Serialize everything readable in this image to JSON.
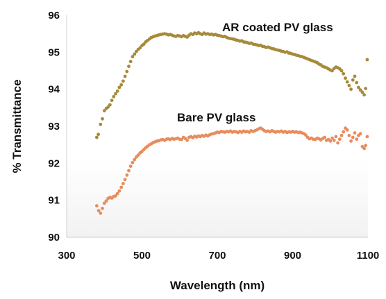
{
  "chart_data": {
    "type": "scatter",
    "title": "",
    "xlabel": "Wavelength (nm)",
    "ylabel": "% Transmittance",
    "xlim": [
      300,
      1100
    ],
    "ylim": [
      90,
      96
    ],
    "x_ticks": [
      300,
      500,
      700,
      900,
      1100
    ],
    "y_ticks": [
      90,
      91,
      92,
      93,
      94,
      95,
      96
    ],
    "grid": false,
    "legend": "none",
    "annotations": [
      {
        "text": "AR coated PV glass",
        "series": "AR coated PV glass"
      },
      {
        "text": "Bare PV glass",
        "series": "Bare PV glass"
      }
    ],
    "series": [
      {
        "name": "AR coated PV glass",
        "color": "#a68a3a",
        "points": [
          [
            380,
            92.7
          ],
          [
            384,
            92.78
          ],
          [
            390,
            93.05
          ],
          [
            395,
            93.2
          ],
          [
            400,
            93.42
          ],
          [
            405,
            93.48
          ],
          [
            410,
            93.52
          ],
          [
            415,
            93.58
          ],
          [
            420,
            93.7
          ],
          [
            425,
            93.8
          ],
          [
            430,
            93.88
          ],
          [
            435,
            93.95
          ],
          [
            440,
            94.05
          ],
          [
            445,
            94.12
          ],
          [
            450,
            94.22
          ],
          [
            455,
            94.35
          ],
          [
            460,
            94.48
          ],
          [
            465,
            94.62
          ],
          [
            470,
            94.75
          ],
          [
            475,
            94.88
          ],
          [
            480,
            94.95
          ],
          [
            485,
            95.02
          ],
          [
            490,
            95.08
          ],
          [
            495,
            95.12
          ],
          [
            500,
            95.18
          ],
          [
            505,
            95.22
          ],
          [
            510,
            95.28
          ],
          [
            515,
            95.32
          ],
          [
            520,
            95.36
          ],
          [
            525,
            95.4
          ],
          [
            530,
            95.42
          ],
          [
            535,
            95.44
          ],
          [
            540,
            95.45
          ],
          [
            545,
            95.47
          ],
          [
            550,
            95.48
          ],
          [
            555,
            95.49
          ],
          [
            560,
            95.5
          ],
          [
            565,
            95.49
          ],
          [
            570,
            95.47
          ],
          [
            575,
            95.48
          ],
          [
            580,
            95.46
          ],
          [
            585,
            95.44
          ],
          [
            590,
            95.43
          ],
          [
            595,
            95.45
          ],
          [
            600,
            95.44
          ],
          [
            605,
            95.42
          ],
          [
            610,
            95.45
          ],
          [
            615,
            95.43
          ],
          [
            620,
            95.41
          ],
          [
            625,
            95.46
          ],
          [
            630,
            95.5
          ],
          [
            635,
            95.48
          ],
          [
            640,
            95.52
          ],
          [
            645,
            95.5
          ],
          [
            650,
            95.53
          ],
          [
            655,
            95.5
          ],
          [
            660,
            95.48
          ],
          [
            665,
            95.52
          ],
          [
            670,
            95.49
          ],
          [
            675,
            95.5
          ],
          [
            680,
            95.48
          ],
          [
            685,
            95.49
          ],
          [
            690,
            95.47
          ],
          [
            695,
            95.48
          ],
          [
            700,
            95.46
          ],
          [
            705,
            95.45
          ],
          [
            710,
            95.44
          ],
          [
            715,
            95.42
          ],
          [
            720,
            95.43
          ],
          [
            725,
            95.4
          ],
          [
            730,
            95.38
          ],
          [
            735,
            95.37
          ],
          [
            740,
            95.36
          ],
          [
            745,
            95.35
          ],
          [
            750,
            95.33
          ],
          [
            755,
            95.32
          ],
          [
            760,
            95.3
          ],
          [
            765,
            95.31
          ],
          [
            770,
            95.28
          ],
          [
            775,
            95.27
          ],
          [
            780,
            95.26
          ],
          [
            785,
            95.24
          ],
          [
            790,
            95.25
          ],
          [
            795,
            95.22
          ],
          [
            800,
            95.21
          ],
          [
            805,
            95.2
          ],
          [
            810,
            95.18
          ],
          [
            815,
            95.19
          ],
          [
            820,
            95.16
          ],
          [
            825,
            95.15
          ],
          [
            830,
            95.13
          ],
          [
            835,
            95.14
          ],
          [
            840,
            95.12
          ],
          [
            845,
            95.1
          ],
          [
            850,
            95.09
          ],
          [
            855,
            95.07
          ],
          [
            860,
            95.06
          ],
          [
            865,
            95.05
          ],
          [
            870,
            95.03
          ],
          [
            875,
            95.02
          ],
          [
            880,
            95.0
          ],
          [
            885,
            95.01
          ],
          [
            890,
            94.98
          ],
          [
            895,
            94.97
          ],
          [
            900,
            94.95
          ],
          [
            905,
            94.94
          ],
          [
            910,
            94.92
          ],
          [
            915,
            94.91
          ],
          [
            920,
            94.89
          ],
          [
            925,
            94.88
          ],
          [
            930,
            94.86
          ],
          [
            935,
            94.84
          ],
          [
            940,
            94.82
          ],
          [
            945,
            94.8
          ],
          [
            950,
            94.78
          ],
          [
            955,
            94.76
          ],
          [
            960,
            94.74
          ],
          [
            965,
            94.72
          ],
          [
            970,
            94.68
          ],
          [
            975,
            94.66
          ],
          [
            980,
            94.62
          ],
          [
            985,
            94.6
          ],
          [
            990,
            94.58
          ],
          [
            995,
            94.55
          ],
          [
            1000,
            94.52
          ],
          [
            1005,
            94.5
          ],
          [
            1010,
            94.56
          ],
          [
            1015,
            94.6
          ],
          [
            1020,
            94.58
          ],
          [
            1025,
            94.55
          ],
          [
            1030,
            94.5
          ],
          [
            1035,
            94.42
          ],
          [
            1040,
            94.3
          ],
          [
            1045,
            94.2
          ],
          [
            1050,
            94.1
          ],
          [
            1055,
            94.0
          ],
          [
            1060,
            94.25
          ],
          [
            1065,
            94.35
          ],
          [
            1070,
            94.18
          ],
          [
            1075,
            94.05
          ],
          [
            1080,
            93.98
          ],
          [
            1085,
            93.92
          ],
          [
            1090,
            93.85
          ],
          [
            1094,
            94.02
          ],
          [
            1098,
            94.8
          ]
        ]
      },
      {
        "name": "Bare PV glass",
        "color": "#e88c5c",
        "points": [
          [
            380,
            90.85
          ],
          [
            385,
            90.72
          ],
          [
            390,
            90.65
          ],
          [
            395,
            90.78
          ],
          [
            400,
            90.92
          ],
          [
            405,
            90.98
          ],
          [
            410,
            91.05
          ],
          [
            415,
            91.08
          ],
          [
            420,
            91.06
          ],
          [
            425,
            91.1
          ],
          [
            430,
            91.12
          ],
          [
            435,
            91.18
          ],
          [
            440,
            91.25
          ],
          [
            445,
            91.35
          ],
          [
            450,
            91.45
          ],
          [
            455,
            91.56
          ],
          [
            460,
            91.68
          ],
          [
            465,
            91.8
          ],
          [
            470,
            91.92
          ],
          [
            475,
            92.02
          ],
          [
            480,
            92.1
          ],
          [
            485,
            92.17
          ],
          [
            490,
            92.22
          ],
          [
            495,
            92.28
          ],
          [
            500,
            92.32
          ],
          [
            505,
            92.37
          ],
          [
            510,
            92.42
          ],
          [
            515,
            92.46
          ],
          [
            520,
            92.5
          ],
          [
            525,
            92.53
          ],
          [
            530,
            92.56
          ],
          [
            535,
            92.58
          ],
          [
            540,
            92.6
          ],
          [
            545,
            92.61
          ],
          [
            550,
            92.63
          ],
          [
            555,
            92.64
          ],
          [
            560,
            92.62
          ],
          [
            565,
            92.65
          ],
          [
            570,
            92.66
          ],
          [
            575,
            92.64
          ],
          [
            580,
            92.67
          ],
          [
            585,
            92.65
          ],
          [
            590,
            92.66
          ],
          [
            595,
            92.68
          ],
          [
            600,
            92.65
          ],
          [
            605,
            92.64
          ],
          [
            610,
            92.7
          ],
          [
            615,
            92.67
          ],
          [
            620,
            92.62
          ],
          [
            625,
            92.7
          ],
          [
            630,
            92.72
          ],
          [
            635,
            92.69
          ],
          [
            640,
            92.73
          ],
          [
            645,
            92.71
          ],
          [
            650,
            92.74
          ],
          [
            655,
            92.72
          ],
          [
            660,
            92.75
          ],
          [
            665,
            92.73
          ],
          [
            670,
            92.76
          ],
          [
            675,
            92.74
          ],
          [
            680,
            92.77
          ],
          [
            685,
            92.79
          ],
          [
            690,
            92.8
          ],
          [
            695,
            92.82
          ],
          [
            700,
            92.84
          ],
          [
            705,
            92.83
          ],
          [
            710,
            92.86
          ],
          [
            715,
            92.85
          ],
          [
            720,
            92.84
          ],
          [
            725,
            92.86
          ],
          [
            730,
            92.85
          ],
          [
            735,
            92.87
          ],
          [
            740,
            92.84
          ],
          [
            745,
            92.86
          ],
          [
            750,
            92.85
          ],
          [
            755,
            92.83
          ],
          [
            760,
            92.86
          ],
          [
            765,
            92.84
          ],
          [
            770,
            92.87
          ],
          [
            775,
            92.85
          ],
          [
            780,
            92.86
          ],
          [
            785,
            92.84
          ],
          [
            790,
            92.88
          ],
          [
            795,
            92.86
          ],
          [
            800,
            92.88
          ],
          [
            805,
            92.9
          ],
          [
            810,
            92.93
          ],
          [
            815,
            92.95
          ],
          [
            820,
            92.92
          ],
          [
            825,
            92.88
          ],
          [
            830,
            92.86
          ],
          [
            835,
            92.87
          ],
          [
            840,
            92.85
          ],
          [
            845,
            92.88
          ],
          [
            850,
            92.86
          ],
          [
            855,
            92.84
          ],
          [
            860,
            92.86
          ],
          [
            865,
            92.85
          ],
          [
            870,
            92.87
          ],
          [
            875,
            92.84
          ],
          [
            880,
            92.86
          ],
          [
            885,
            92.83
          ],
          [
            890,
            92.85
          ],
          [
            895,
            92.84
          ],
          [
            900,
            92.86
          ],
          [
            905,
            92.84
          ],
          [
            910,
            92.85
          ],
          [
            915,
            92.83
          ],
          [
            920,
            92.84
          ],
          [
            925,
            92.82
          ],
          [
            930,
            92.8
          ],
          [
            935,
            92.76
          ],
          [
            940,
            92.7
          ],
          [
            945,
            92.66
          ],
          [
            950,
            92.68
          ],
          [
            955,
            92.65
          ],
          [
            960,
            92.64
          ],
          [
            965,
            92.68
          ],
          [
            970,
            92.66
          ],
          [
            975,
            92.63
          ],
          [
            980,
            92.67
          ],
          [
            985,
            92.7
          ],
          [
            990,
            92.62
          ],
          [
            995,
            92.64
          ],
          [
            1000,
            92.6
          ],
          [
            1005,
            92.68
          ],
          [
            1010,
            92.62
          ],
          [
            1015,
            92.72
          ],
          [
            1020,
            92.55
          ],
          [
            1025,
            92.65
          ],
          [
            1030,
            92.75
          ],
          [
            1035,
            92.85
          ],
          [
            1040,
            92.95
          ],
          [
            1045,
            92.9
          ],
          [
            1050,
            92.75
          ],
          [
            1055,
            92.6
          ],
          [
            1060,
            92.7
          ],
          [
            1065,
            92.82
          ],
          [
            1070,
            92.65
          ],
          [
            1075,
            92.75
          ],
          [
            1080,
            92.8
          ],
          [
            1085,
            92.45
          ],
          [
            1090,
            92.4
          ],
          [
            1094,
            92.48
          ],
          [
            1098,
            92.72
          ]
        ]
      }
    ]
  }
}
